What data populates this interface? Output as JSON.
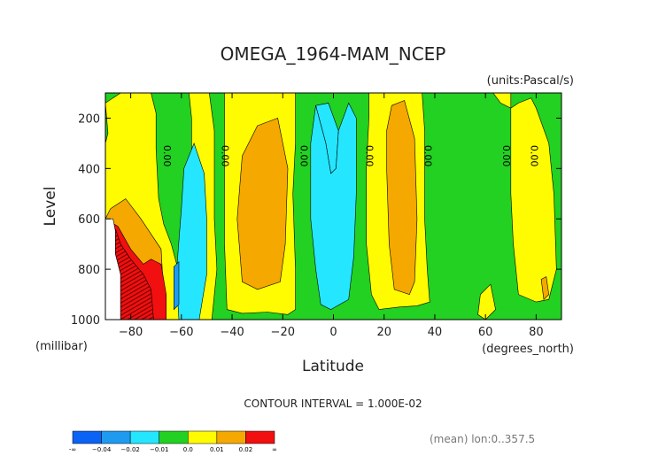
{
  "chart_data": {
    "type": "contour",
    "title": "OMEGA_1964-MAM_NCEP",
    "units_label": "(units:Pascal/s)",
    "xlabel": "Latitude",
    "ylabel": "Level",
    "x_unit_label": "(degrees_north)",
    "y_unit_label": "(millibar)",
    "xlim": [
      -90,
      90
    ],
    "ylim": [
      1000,
      100
    ],
    "x_ticks": [
      -80,
      -60,
      -40,
      -20,
      0,
      20,
      40,
      60,
      80
    ],
    "x_tick_labels": [
      "−80",
      "−60",
      "−40",
      "−20",
      "0",
      "20",
      "40",
      "60",
      "80"
    ],
    "y_ticks": [
      200,
      400,
      600,
      800,
      1000
    ],
    "y_tick_labels": [
      "200",
      "400",
      "600",
      "800",
      "1000"
    ],
    "contour_interval_text": "CONTOUR INTERVAL = 1.000E-02",
    "footer_text": "(mean) lon:0..357.5",
    "contour_labels": [
      {
        "text": "0.00",
        "lat": -67,
        "level": 350
      },
      {
        "text": "0.00",
        "lat": -44,
        "level": 350
      },
      {
        "text": "0.00",
        "lat": -13,
        "level": 350
      },
      {
        "text": "0.00",
        "lat": 13,
        "level": 350
      },
      {
        "text": "0.00",
        "lat": 36,
        "level": 350
      },
      {
        "text": "0.00",
        "lat": 67,
        "level": 350
      },
      {
        "text": "0.00",
        "lat": 78,
        "level": 350
      }
    ],
    "colorbar": {
      "bins": [
        "#0b63f5",
        "#1e9bf0",
        "#25e6ff",
        "#22d121",
        "#fffb00",
        "#f5a800",
        "#f20f0f"
      ],
      "labels": [
        "-∞",
        "−0.04",
        "−0.02",
        "−0.01",
        "0.0",
        "0.01",
        "0.02",
        "∞"
      ]
    },
    "regions": [
      {
        "color": "#22d121",
        "points": [
          [
            -90,
            100
          ],
          [
            90,
            100
          ],
          [
            90,
            1000
          ],
          [
            -90,
            1000
          ]
        ]
      },
      {
        "color": "#fffb00",
        "points": [
          [
            -90,
            140
          ],
          [
            -84,
            100
          ],
          [
            -72,
            100
          ],
          [
            -70,
            180
          ],
          [
            -70,
            320
          ],
          [
            -69,
            520
          ],
          [
            -67,
            620
          ],
          [
            -64,
            700
          ],
          [
            -60,
            850
          ],
          [
            -59,
            1000
          ],
          [
            -90,
            1000
          ],
          [
            -90,
            300
          ],
          [
            -89,
            260
          ]
        ]
      },
      {
        "color": "#fffb00",
        "points": [
          [
            -57,
            100
          ],
          [
            -49,
            100
          ],
          [
            -47,
            250
          ],
          [
            -47,
            600
          ],
          [
            -46,
            800
          ],
          [
            -48,
            1000
          ],
          [
            -57,
            1000
          ],
          [
            -58,
            700
          ],
          [
            -56,
            400
          ],
          [
            -56,
            200
          ]
        ]
      },
      {
        "color": "#fffb00",
        "points": [
          [
            -43,
            100
          ],
          [
            -15,
            100
          ],
          [
            -15,
            300
          ],
          [
            -16,
            500
          ],
          [
            -15,
            800
          ],
          [
            -15,
            960
          ],
          [
            -18,
            980
          ],
          [
            -26,
            970
          ],
          [
            -36,
            975
          ],
          [
            -42,
            960
          ],
          [
            -43,
            700
          ],
          [
            -43,
            400
          ]
        ]
      },
      {
        "color": "#fffb00",
        "points": [
          [
            14,
            100
          ],
          [
            35,
            100
          ],
          [
            36,
            250
          ],
          [
            36,
            600
          ],
          [
            37,
            800
          ],
          [
            38,
            930
          ],
          [
            33,
            945
          ],
          [
            26,
            950
          ],
          [
            18,
            960
          ],
          [
            15,
            900
          ],
          [
            13,
            700
          ],
          [
            13,
            400
          ],
          [
            14,
            200
          ]
        ]
      },
      {
        "color": "#fffb00",
        "points": [
          [
            63,
            100
          ],
          [
            70,
            100
          ],
          [
            70,
            350
          ],
          [
            70,
            500
          ],
          [
            71,
            700
          ],
          [
            73,
            900
          ],
          [
            80,
            930
          ],
          [
            85,
            920
          ],
          [
            88,
            800
          ],
          [
            87,
            500
          ],
          [
            85,
            300
          ],
          [
            80,
            160
          ],
          [
            78,
            120
          ],
          [
            73,
            140
          ],
          [
            70,
            160
          ],
          [
            66,
            140
          ]
        ]
      },
      {
        "color": "#fffb00",
        "points": [
          [
            58,
            900
          ],
          [
            62,
            860
          ],
          [
            64,
            960
          ],
          [
            60,
            1000
          ],
          [
            57,
            980
          ]
        ]
      },
      {
        "color": "#f5a800",
        "points": [
          [
            -90,
            600
          ],
          [
            -88,
            560
          ],
          [
            -82,
            520
          ],
          [
            -76,
            600
          ],
          [
            -72,
            660
          ],
          [
            -68,
            720
          ],
          [
            -67,
            900
          ],
          [
            -69,
            1000
          ],
          [
            -90,
            1000
          ]
        ]
      },
      {
        "color": "#f5a800",
        "points": [
          [
            -30,
            230
          ],
          [
            -22,
            200
          ],
          [
            -18,
            400
          ],
          [
            -19,
            700
          ],
          [
            -21,
            850
          ],
          [
            -30,
            880
          ],
          [
            -36,
            850
          ],
          [
            -38,
            600
          ],
          [
            -36,
            350
          ]
        ]
      },
      {
        "color": "#f5a800",
        "points": [
          [
            23,
            150
          ],
          [
            28,
            130
          ],
          [
            32,
            280
          ],
          [
            33,
            600
          ],
          [
            32,
            850
          ],
          [
            30,
            900
          ],
          [
            24,
            880
          ],
          [
            22,
            700
          ],
          [
            21,
            400
          ],
          [
            21,
            250
          ]
        ]
      },
      {
        "color": "#f5a800",
        "points": [
          [
            82,
            840
          ],
          [
            84,
            830
          ],
          [
            85,
            900
          ],
          [
            83,
            920
          ]
        ]
      },
      {
        "color": "#25e6ff",
        "points": [
          [
            -60,
            560
          ],
          [
            -59,
            400
          ],
          [
            -55,
            300
          ],
          [
            -51,
            420
          ],
          [
            -50,
            600
          ],
          [
            -50,
            820
          ],
          [
            -53,
            1000
          ],
          [
            -61,
            1000
          ],
          [
            -62,
            820
          ]
        ]
      },
      {
        "color": "#25e6ff",
        "points": [
          [
            -7,
            150
          ],
          [
            -2,
            140
          ],
          [
            2,
            250
          ],
          [
            1,
            400
          ],
          [
            -1,
            420
          ],
          [
            -3,
            300
          ]
        ]
      },
      {
        "color": "#25e6ff",
        "points": [
          [
            -7,
            150
          ],
          [
            -3,
            300
          ],
          [
            -1,
            420
          ],
          [
            1,
            400
          ],
          [
            2,
            250
          ],
          [
            6,
            140
          ],
          [
            9,
            200
          ],
          [
            9,
            500
          ],
          [
            8,
            750
          ],
          [
            6,
            920
          ],
          [
            -1,
            960
          ],
          [
            -5,
            940
          ],
          [
            -7,
            800
          ],
          [
            -9,
            600
          ],
          [
            -9,
            300
          ]
        ]
      },
      {
        "color": "#1e9bf0",
        "points": [
          [
            -63,
            790
          ],
          [
            -61,
            770
          ],
          [
            -61,
            940
          ],
          [
            -63,
            960
          ]
        ]
      },
      {
        "color": "#f20f0f",
        "points": [
          [
            -90,
            600
          ],
          [
            -85,
            630
          ],
          [
            -80,
            720
          ],
          [
            -75,
            780
          ],
          [
            -72,
            760
          ],
          [
            -68,
            780
          ],
          [
            -66,
            900
          ],
          [
            -66,
            1000
          ],
          [
            -90,
            1000
          ]
        ]
      },
      {
        "color": "#ffffff",
        "points": [
          [
            -90,
            600
          ],
          [
            -87,
            600
          ],
          [
            -86,
            650
          ],
          [
            -86,
            740
          ],
          [
            -84,
            820
          ],
          [
            -84,
            1000
          ],
          [
            -90,
            1000
          ]
        ]
      }
    ],
    "hatch_region": {
      "color": "#6b0000",
      "points": [
        [
          -86,
          640
        ],
        [
          -84,
          700
        ],
        [
          -80,
          760
        ],
        [
          -75,
          820
        ],
        [
          -72,
          880
        ],
        [
          -71,
          1000
        ],
        [
          -84,
          1000
        ],
        [
          -84,
          820
        ],
        [
          -86,
          740
        ]
      ]
    }
  }
}
